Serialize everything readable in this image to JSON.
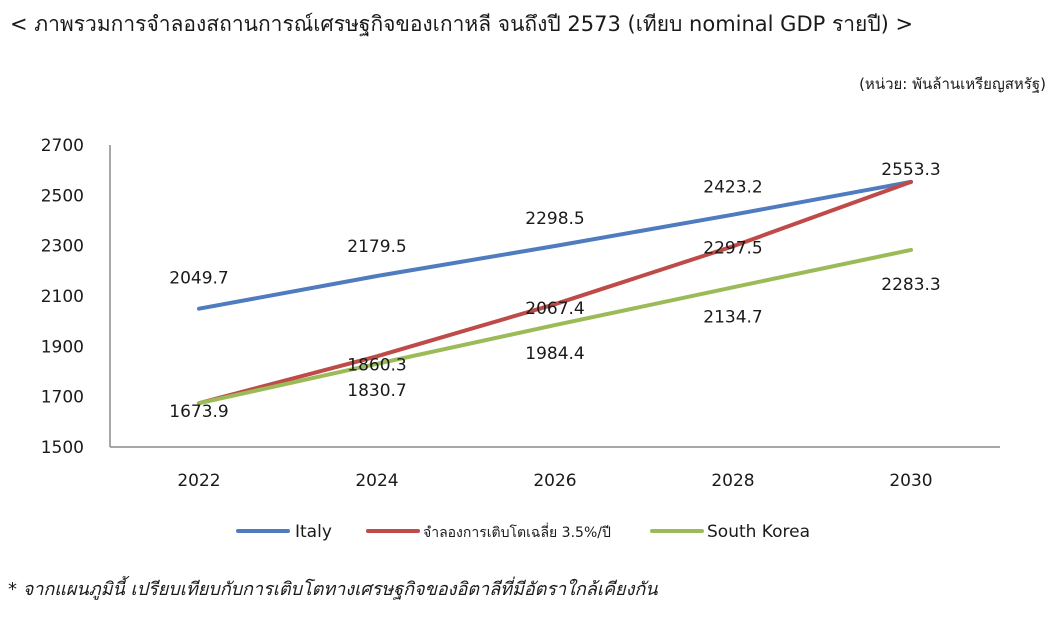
{
  "title": "< ภาพรวมการจำลองสถานการณ์เศรษฐกิจของเกาหลี จนถึงปี 2573 (เทียบ nominal GDP รายปี) >",
  "unit_note": "(หน่วย: พันล้านเหรียญสหรัฐ)",
  "footnote": "* จากแผนภูมินี้ เปรียบเทียบกับการเติบโตทางเศรษฐกิจของอิตาลีที่มีอัตราใกล้เคียงกัน",
  "chart_data": {
    "type": "line",
    "title": "",
    "xlabel": "",
    "ylabel": "",
    "x": [
      "2022",
      "2024",
      "2026",
      "2028",
      "2030"
    ],
    "ylim": [
      1500,
      2700
    ],
    "yticks": [
      "2700",
      "2500",
      "2300",
      "2100",
      "1900",
      "1700",
      "1500"
    ],
    "grid": false,
    "legend_position": "bottom",
    "series": [
      {
        "name": "Italy",
        "color": "#4F7BBF",
        "values": [
          2049.7,
          2179.5,
          2298.5,
          2423.2,
          2553.3
        ],
        "labels": [
          "2049.7",
          "2179.5",
          "2298.5",
          "2423.2",
          "2553.3"
        ]
      },
      {
        "name": "จำลองการเติบโตเฉลี่ย 3.5%/ปี",
        "color": "#BE4B48",
        "values": [
          1673.9,
          1860.3,
          2067.4,
          2297.5,
          2553.3
        ],
        "labels": [
          "1673.9",
          "1860.3",
          "2067.4",
          "2297.5",
          ""
        ]
      },
      {
        "name": "South Korea",
        "color": "#9BBB59",
        "values": [
          1673.9,
          1830.7,
          1984.4,
          2134.7,
          2283.3
        ],
        "labels": [
          "",
          "1830.7",
          "1984.4",
          "2134.7",
          "2283.3"
        ]
      }
    ]
  }
}
